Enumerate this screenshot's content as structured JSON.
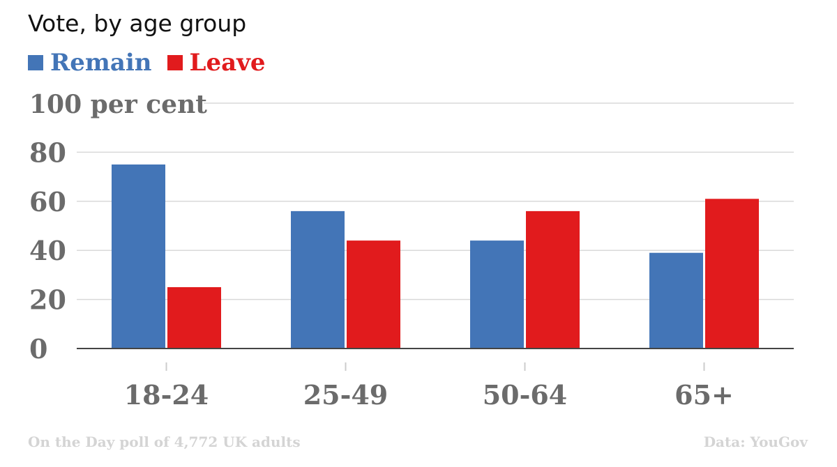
{
  "chart_data": {
    "type": "bar",
    "title": "Vote, by age group",
    "categories": [
      "18-24",
      "25-49",
      "50-64",
      "65+"
    ],
    "series": [
      {
        "name": "Remain",
        "color": "#4375b7",
        "values": [
          75,
          56,
          44,
          39
        ]
      },
      {
        "name": "Leave",
        "color": "#e11b1d",
        "values": [
          25,
          44,
          56,
          61
        ]
      }
    ],
    "ylim": [
      0,
      100
    ],
    "yticks": [
      {
        "value": 0,
        "label": "0"
      },
      {
        "value": 20,
        "label": "20"
      },
      {
        "value": 40,
        "label": "40"
      },
      {
        "value": 60,
        "label": "60"
      },
      {
        "value": 80,
        "label": "80"
      },
      {
        "value": 100,
        "label": "100 per cent"
      }
    ],
    "grid": true,
    "legend_position": "top-left"
  },
  "footer": {
    "note": "On the Day poll of 4,772 UK adults",
    "source": "Data: YouGov"
  }
}
